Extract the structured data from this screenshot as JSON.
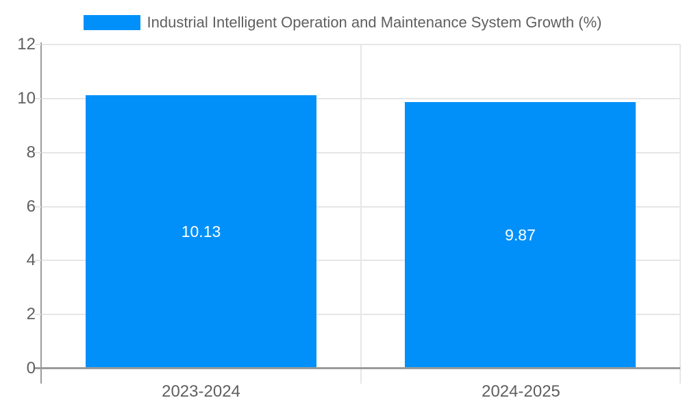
{
  "chart_data": {
    "type": "bar",
    "title": "Industrial Intelligent Operation and Maintenance System Growth (%)",
    "categories": [
      "2023-2024",
      "2024-2025"
    ],
    "values": [
      10.13,
      9.87
    ],
    "value_labels": [
      "10.13",
      "9.87"
    ],
    "xlabel": "",
    "ylabel": "",
    "ylim": [
      0,
      12
    ],
    "yticks": [
      0,
      2,
      4,
      6,
      8,
      10,
      12
    ],
    "grid": true,
    "legend_position": "top-center",
    "colors": {
      "bar": "#0190f9",
      "grid": "#e6e6e6",
      "axis": "#9a9a9a",
      "text": "#5f5f5f",
      "value_label": "#ffffff",
      "background": "#ffffff"
    }
  }
}
